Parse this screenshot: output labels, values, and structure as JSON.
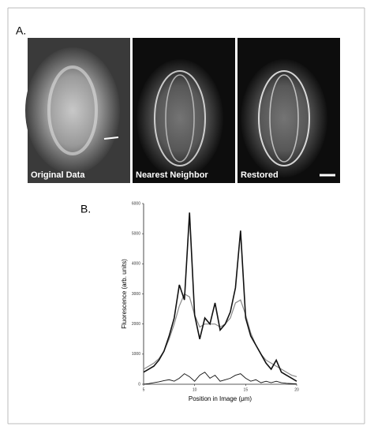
{
  "panel_a": {
    "label": "A.",
    "images": [
      {
        "caption": "Original Data"
      },
      {
        "caption": "Nearest Neighbor"
      },
      {
        "caption": "Restored"
      }
    ]
  },
  "panel_b_label": "B.",
  "chart_data": {
    "type": "line",
    "x_label": "Position in Image (μm)",
    "y_label": "Fluorescence (arb. units)",
    "x": [
      5,
      5.5,
      6,
      6.5,
      7,
      7.5,
      8,
      8.5,
      9,
      9.5,
      10,
      10.5,
      11,
      11.5,
      12,
      12.5,
      13,
      13.5,
      14,
      14.5,
      15,
      15.5,
      16,
      16.5,
      17,
      17.5,
      18,
      18.5,
      19,
      19.5,
      20
    ],
    "series": [
      {
        "color": "#111111",
        "width": 1.6,
        "values": [
          400,
          500,
          600,
          800,
          1100,
          1600,
          2200,
          3300,
          2800,
          5700,
          2300,
          1500,
          2200,
          2000,
          2700,
          1800,
          2000,
          2400,
          3200,
          5100,
          2200,
          1600,
          1300,
          1000,
          700,
          500,
          800,
          400,
          300,
          200,
          100
        ]
      },
      {
        "color": "#888888",
        "width": 1.2,
        "values": [
          500,
          600,
          700,
          850,
          1100,
          1500,
          2000,
          2600,
          3000,
          2900,
          2300,
          1900,
          2000,
          2000,
          2000,
          1900,
          2000,
          2200,
          2700,
          2800,
          2300,
          1700,
          1300,
          1000,
          800,
          700,
          600,
          500,
          400,
          300,
          250
        ]
      },
      {
        "color": "#111111",
        "width": 0.9,
        "values": [
          0,
          20,
          50,
          80,
          120,
          150,
          100,
          200,
          350,
          250,
          100,
          300,
          400,
          200,
          300,
          100,
          150,
          200,
          300,
          350,
          200,
          100,
          150,
          50,
          100,
          50,
          100,
          50,
          30,
          20,
          10
        ]
      }
    ],
    "xlim": [
      5,
      20
    ],
    "ylim": [
      0,
      6000
    ],
    "xticks": [
      5,
      10,
      15,
      20
    ],
    "yticks": [
      0,
      1000,
      2000,
      3000,
      4000,
      5000,
      6000
    ]
  }
}
